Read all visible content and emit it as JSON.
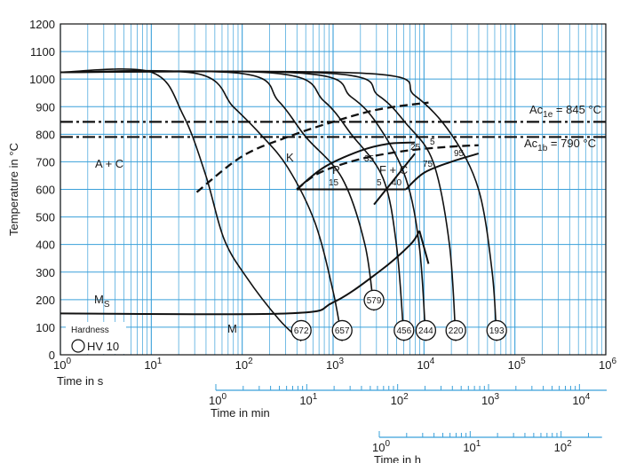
{
  "chart_data": {
    "type": "line",
    "y_axis": {
      "label": "Temperature in °C",
      "range": [
        0,
        1200
      ],
      "ticks": [
        "0",
        "100",
        "200",
        "300",
        "400",
        "500",
        "600",
        "700",
        "800",
        "900",
        "1000",
        "1100",
        "1200"
      ]
    },
    "time_axes": [
      {
        "label": "Time in s",
        "exponents": [
          "0",
          "1",
          "2",
          "3",
          "4",
          "5",
          "6"
        ]
      },
      {
        "label": "Time in min",
        "exponents": [
          "0",
          "1",
          "2",
          "3",
          "4"
        ]
      },
      {
        "label": "Time in h",
        "exponents": [
          "0",
          "1",
          "2"
        ]
      }
    ],
    "tick_base": "10",
    "reference_lines": [
      {
        "name_main": "Ac",
        "name_sub": "1e",
        "value_text": " = 845 °C",
        "temperature": 845
      },
      {
        "name_main": "Ac",
        "name_sub": "1b",
        "value_text": " = 790 °C",
        "temperature": 790
      }
    ],
    "phase_labels": {
      "austenite_carbide": "A + C",
      "ferrite_carbide": "F + C",
      "pearlite": "P",
      "bainite": "K",
      "martensite": "M",
      "ms_main": "M",
      "ms_sub": "S"
    },
    "percent_labels": [
      "15",
      "35",
      "25",
      "5",
      "75",
      "95",
      "5",
      "40"
    ],
    "legend": {
      "title": "Hardness",
      "item": "HV 10"
    },
    "hardness_values": [
      "672",
      "657",
      "579",
      "456",
      "244",
      "220",
      "193"
    ],
    "cooling_curves": [
      {
        "hardness": "672",
        "points": [
          [
            0,
            1025
          ],
          [
            1.0,
            1025
          ],
          [
            1.35,
            870
          ],
          [
            1.6,
            650
          ],
          [
            1.8,
            420
          ],
          [
            2.05,
            280
          ],
          [
            2.4,
            130
          ],
          [
            2.65,
            50
          ]
        ]
      },
      {
        "hardness": "657",
        "points": [
          [
            0,
            1025
          ],
          [
            1.5,
            1020
          ],
          [
            1.9,
            900
          ],
          [
            2.2,
            800
          ],
          [
            2.5,
            680
          ],
          [
            2.8,
            480
          ],
          [
            3.0,
            230
          ],
          [
            3.1,
            50
          ]
        ]
      },
      {
        "hardness": "579",
        "points": [
          [
            0,
            1025
          ],
          [
            2.0,
            1020
          ],
          [
            2.4,
            920
          ],
          [
            2.7,
            790
          ],
          [
            3.1,
            640
          ],
          [
            3.35,
            400
          ],
          [
            3.45,
            160
          ]
        ]
      },
      {
        "hardness": "456",
        "points": [
          [
            0,
            1025
          ],
          [
            2.4,
            1020
          ],
          [
            2.9,
            920
          ],
          [
            3.2,
            800
          ],
          [
            3.55,
            640
          ],
          [
            3.7,
            390
          ],
          [
            3.78,
            50
          ]
        ]
      },
      {
        "hardness": "244",
        "points": [
          [
            0,
            1025
          ],
          [
            2.7,
            1020
          ],
          [
            3.2,
            935
          ],
          [
            3.5,
            830
          ],
          [
            3.8,
            640
          ],
          [
            3.95,
            390
          ],
          [
            4.02,
            50
          ]
        ]
      },
      {
        "hardness": "220",
        "points": [
          [
            0,
            1025
          ],
          [
            3.0,
            1020
          ],
          [
            3.5,
            940
          ],
          [
            3.8,
            840
          ],
          [
            4.1,
            700
          ],
          [
            4.28,
            400
          ],
          [
            4.35,
            50
          ]
        ]
      },
      {
        "hardness": "193",
        "points": [
          [
            0,
            1025
          ],
          [
            3.4,
            1020
          ],
          [
            3.9,
            940
          ],
          [
            4.3,
            800
          ],
          [
            4.6,
            600
          ],
          [
            4.75,
            300
          ],
          [
            4.8,
            50
          ]
        ]
      }
    ],
    "transformation_boundaries": {
      "carbide_start": [
        [
          1.5,
          590
        ],
        [
          2.0,
          720
        ],
        [
          2.5,
          790
        ],
        [
          3.0,
          845
        ],
        [
          3.5,
          890
        ],
        [
          4.05,
          915
        ]
      ],
      "pearlite_start": [
        [
          2.6,
          600
        ],
        [
          2.85,
          660
        ],
        [
          3.3,
          710
        ],
        [
          3.8,
          740
        ],
        [
          4.3,
          755
        ],
        [
          4.6,
          760
        ]
      ],
      "pearlite_region_upper": [
        [
          2.6,
          600
        ],
        [
          2.9,
          680
        ],
        [
          3.3,
          740
        ],
        [
          3.6,
          765
        ],
        [
          3.9,
          770
        ]
      ],
      "pearlite_finish": [
        [
          3.45,
          545
        ],
        [
          3.9,
          730
        ]
      ],
      "ferrite_finish": [
        [
          3.8,
          600
        ],
        [
          4.0,
          660
        ],
        [
          4.3,
          700
        ],
        [
          4.6,
          730
        ]
      ],
      "transformation_floor": [
        [
          2.6,
          600
        ],
        [
          3.8,
          600
        ]
      ],
      "ms_line": [
        [
          0,
          150
        ],
        [
          2.5,
          150
        ],
        [
          3.0,
          190
        ],
        [
          3.5,
          300
        ],
        [
          3.85,
          400
        ],
        [
          3.95,
          450
        ]
      ],
      "ms_tail": [
        [
          3.95,
          450
        ],
        [
          4.05,
          330
        ]
      ]
    }
  }
}
